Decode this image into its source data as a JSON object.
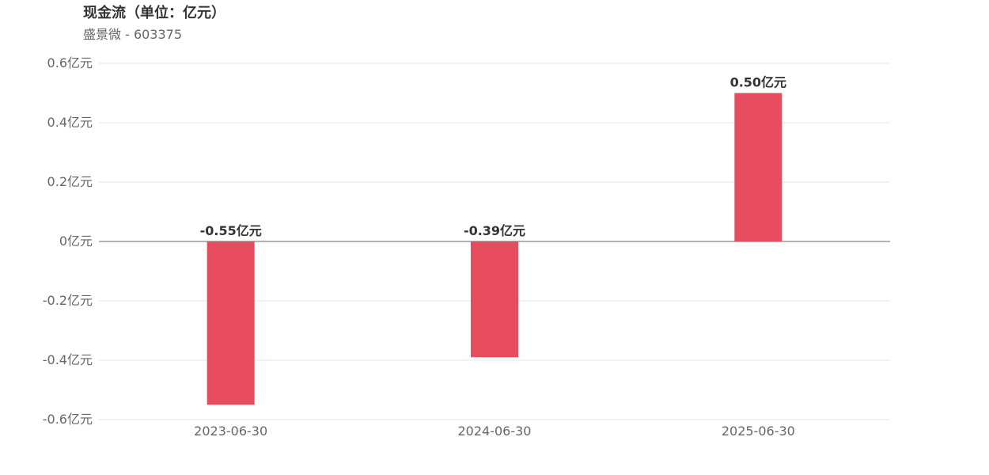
{
  "chart_data": {
    "type": "bar",
    "title": "现金流（单位：亿元）",
    "subtitle": "盛景微 - 603375",
    "categories": [
      "2023-06-30",
      "2024-06-30",
      "2025-06-30"
    ],
    "values": [
      -0.55,
      -0.39,
      0.5
    ],
    "data_labels": [
      "-0.55亿元",
      "-0.39亿元",
      "0.50亿元"
    ],
    "yticks": [
      0.6,
      0.4,
      0.2,
      0,
      -0.2,
      -0.4,
      -0.6
    ],
    "ytick_labels": [
      "0.6亿元",
      "0.4亿元",
      "0.2亿元",
      "0亿元",
      "-0.2亿元",
      "-0.4亿元",
      "-0.6亿元"
    ],
    "ylim": [
      -0.6,
      0.6
    ],
    "xlabel": "",
    "ylabel": "",
    "grid": true,
    "bar_color": "#e64c5e",
    "grid_color": "#e6e6e6",
    "zero_line_color": "#666666"
  }
}
